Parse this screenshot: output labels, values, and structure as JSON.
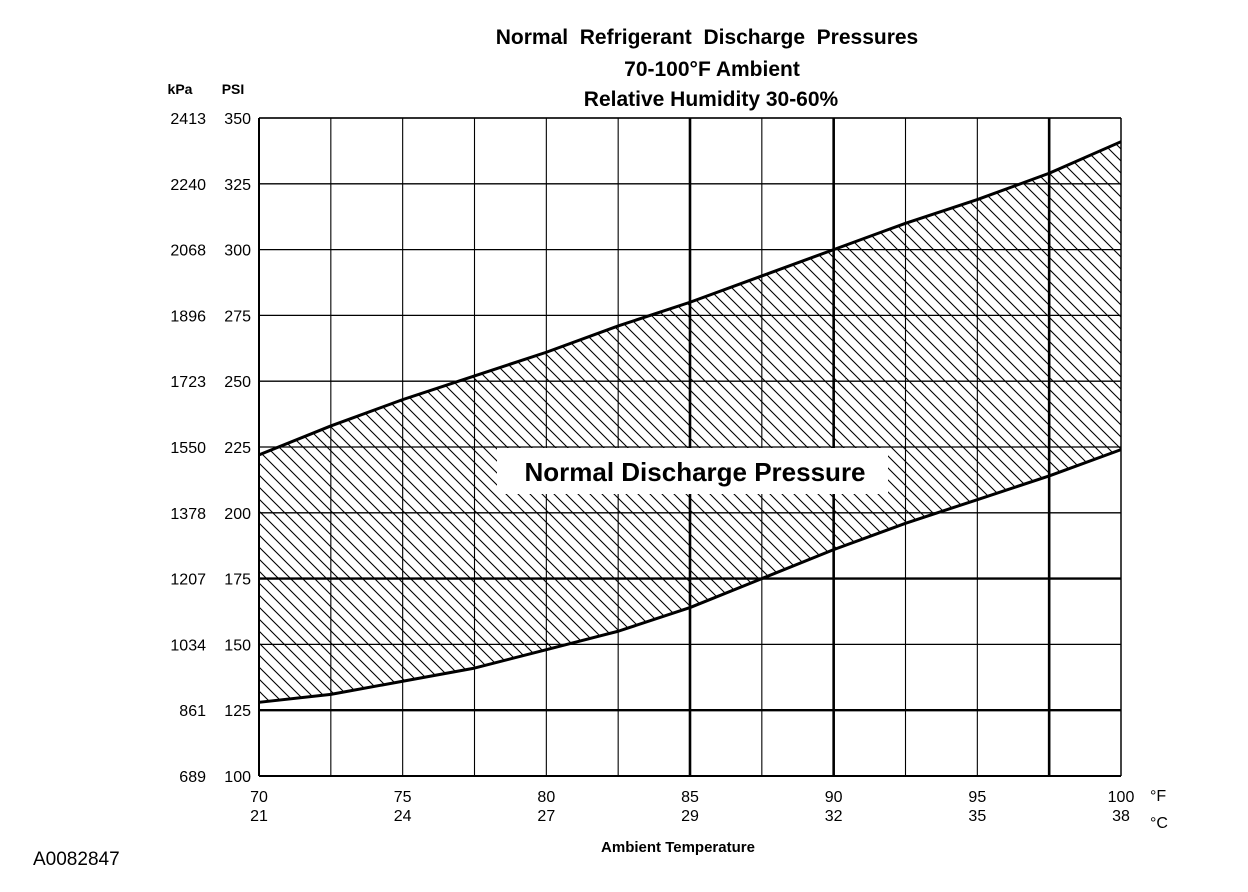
{
  "chart_data": {
    "type": "area",
    "title": "Normal  Refrigerant  Discharge  Pressures",
    "subtitle_1": "70-100°F Ambient",
    "subtitle_2": "Relative Humidity 30-60%",
    "xlabel": "Ambient Temperature",
    "x_unit_f": "°F",
    "x_unit_c": "°C",
    "xlim": [
      70,
      100
    ],
    "ylim": [
      100,
      350
    ],
    "grid": true,
    "x_ticks": [
      {
        "f": "70",
        "c": "21",
        "value": 70
      },
      {
        "f": "75",
        "c": "24",
        "value": 75
      },
      {
        "f": "80",
        "c": "27",
        "value": 80
      },
      {
        "f": "85",
        "c": "29",
        "value": 85
      },
      {
        "f": "90",
        "c": "32",
        "value": 90
      },
      {
        "f": "95",
        "c": "35",
        "value": 95
      },
      {
        "f": "100",
        "c": "38",
        "value": 100
      }
    ],
    "y_unit_kpa": "kPa",
    "y_unit_psi": "PSI",
    "y_ticks": [
      {
        "kpa": "2413",
        "psi": "350",
        "value": 350
      },
      {
        "kpa": "2240",
        "psi": "325",
        "value": 325
      },
      {
        "kpa": "2068",
        "psi": "300",
        "value": 300
      },
      {
        "kpa": "1896",
        "psi": "275",
        "value": 275
      },
      {
        "kpa": "1723",
        "psi": "250",
        "value": 250
      },
      {
        "kpa": "1550",
        "psi": "225",
        "value": 225
      },
      {
        "kpa": "1378",
        "psi": "200",
        "value": 200
      },
      {
        "kpa": "1207",
        "psi": "175",
        "value": 175
      },
      {
        "kpa": "1034",
        "psi": "150",
        "value": 150
      },
      {
        "kpa": "861",
        "psi": "125",
        "value": 125
      },
      {
        "kpa": "689",
        "psi": "100",
        "value": 100
      }
    ],
    "series": [
      {
        "name": "upper",
        "x": [
          70,
          72.5,
          75,
          77.5,
          80,
          82.5,
          85,
          87.5,
          90,
          92.5,
          95,
          97.5,
          100
        ],
        "values": [
          222,
          233,
          243,
          252,
          261,
          271,
          280,
          290,
          300,
          310,
          319,
          329,
          341
        ]
      },
      {
        "name": "lower",
        "x": [
          70,
          72.5,
          75,
          77.5,
          80,
          82.5,
          85,
          87.5,
          90,
          92.5,
          95,
          97.5,
          100
        ],
        "values": [
          128,
          131,
          136,
          141,
          148,
          155,
          164,
          175,
          186,
          196,
          205,
          214,
          224
        ]
      }
    ],
    "band_label": "Normal Discharge Pressure"
  },
  "figure_id": "A0082847"
}
